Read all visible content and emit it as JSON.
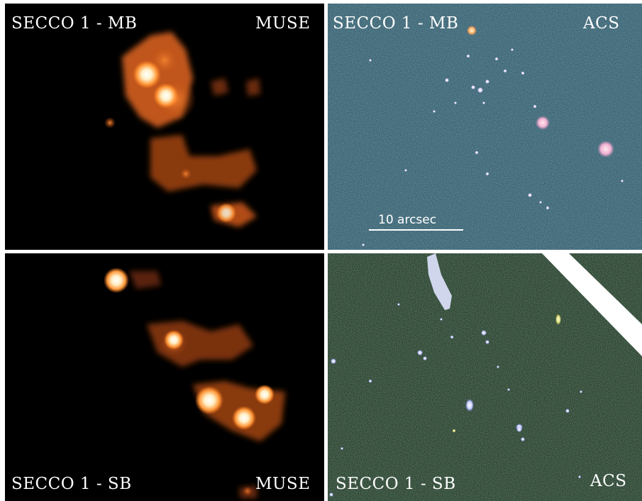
{
  "panels": {
    "top_left": {
      "object_label": "SECCO 1 - MB",
      "instrument_label": "MUSE"
    },
    "top_right": {
      "object_label": "SECCO 1 - MB",
      "instrument_label": "ACS"
    },
    "bottom_left": {
      "object_label": "SECCO 1 - SB",
      "instrument_label": "MUSE"
    },
    "bottom_right": {
      "object_label": "SECCO 1 - SB",
      "instrument_label": "ACS"
    }
  },
  "scale_bar": {
    "label": "10 arcsec"
  },
  "colors": {
    "muse_background": "#000000",
    "muse_emission": "#e0641c",
    "muse_core": "#fff4d8",
    "acs_top_background": "#2f5565",
    "acs_bottom_background": "#1e3324",
    "acs_sources": "#c9ccff",
    "divider": "#ffffff"
  }
}
